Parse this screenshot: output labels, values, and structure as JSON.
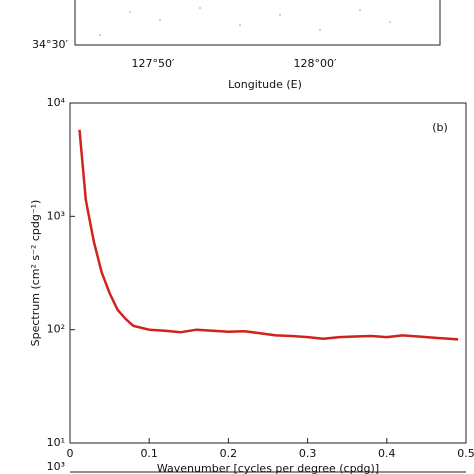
{
  "chart_data": [
    {
      "type": "map",
      "ytick_labels": [
        "34°30′"
      ],
      "xtick_labels": [
        "127°50′",
        "128°00′"
      ],
      "xlabel": "Longitude (E)"
    },
    {
      "type": "line",
      "annotation": "(b)",
      "xlabel": "Wavenumber [cycles per degree (cpdg)]",
      "ylabel": "Spectrum (cm² s⁻² cpdg⁻¹)",
      "log_y": true,
      "xlim": [
        0,
        0.5
      ],
      "ylim": [
        10,
        10000
      ],
      "xticks": [
        0,
        0.1,
        0.2,
        0.3,
        0.4,
        0.5
      ],
      "yticks": [
        {
          "value": 10,
          "label": "10¹"
        },
        {
          "value": 100,
          "label": "10²"
        },
        {
          "value": 1000,
          "label": "10³"
        },
        {
          "value": 10000,
          "label": "10⁴"
        }
      ],
      "series": [
        {
          "color": "#d0231b",
          "x": [
            0.012,
            0.02,
            0.03,
            0.04,
            0.05,
            0.06,
            0.07,
            0.08,
            0.1,
            0.12,
            0.14,
            0.16,
            0.18,
            0.2,
            0.22,
            0.24,
            0.26,
            0.28,
            0.3,
            0.32,
            0.34,
            0.36,
            0.38,
            0.4,
            0.42,
            0.44,
            0.46,
            0.49
          ],
          "values": [
            5800,
            1400,
            600,
            320,
            210,
            150,
            125,
            108,
            100,
            98,
            95,
            100,
            98,
            96,
            97,
            93,
            89,
            88,
            86,
            83,
            86,
            87,
            88,
            86,
            89,
            87,
            85,
            82
          ]
        }
      ]
    },
    {
      "type": "line",
      "yticks": [
        {
          "value": 1000,
          "label": "10³"
        }
      ]
    }
  ]
}
